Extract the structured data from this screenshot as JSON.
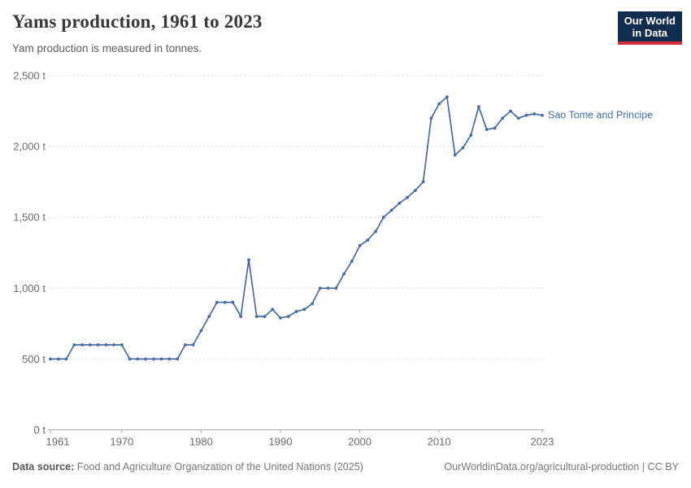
{
  "header": {
    "title": "Yams production, 1961 to 2023",
    "subtitle": "Yam production is measured in tonnes."
  },
  "logo": {
    "line1": "Our World",
    "line2": "in Data"
  },
  "footer": {
    "source_label": "Data source:",
    "source_text": " Food and Agriculture Organization of the United Nations (2025)",
    "right": "OurWorldinData.org/agricultural-production | CC BY"
  },
  "colors": {
    "accent": "#4a69a5",
    "title": "#383838",
    "axis_text": "#6e6e6e",
    "gridline": "#dedede",
    "axis_line": "#a8a8a8",
    "logo_bg": "#102d4f",
    "logo_red": "#d32f3f"
  },
  "chart_data": {
    "type": "line",
    "title": "Yams production, 1961 to 2023",
    "subtitle": "Yam production is measured in tonnes.",
    "xlabel": "",
    "ylabel": "",
    "unit": "t",
    "grid": "horizontal-dashed",
    "legend_position": "end-of-line-label",
    "xlim": [
      1961,
      2023
    ],
    "ylim": [
      0,
      2500
    ],
    "xticks": [
      1961,
      1970,
      1980,
      1990,
      2000,
      2010,
      2023
    ],
    "yticks": [
      {
        "value": 0,
        "label": "0 t"
      },
      {
        "value": 500,
        "label": "500 t"
      },
      {
        "value": 1000,
        "label": "1,000 t"
      },
      {
        "value": 1500,
        "label": "1,500 t"
      },
      {
        "value": 2000,
        "label": "2,000 t"
      },
      {
        "value": 2500,
        "label": "2,500 t"
      }
    ],
    "x": [
      1961,
      1962,
      1963,
      1964,
      1965,
      1966,
      1967,
      1968,
      1969,
      1970,
      1971,
      1972,
      1973,
      1974,
      1975,
      1976,
      1977,
      1978,
      1979,
      1980,
      1981,
      1982,
      1983,
      1984,
      1985,
      1986,
      1987,
      1988,
      1989,
      1990,
      1991,
      1992,
      1993,
      1994,
      1995,
      1996,
      1997,
      1998,
      1999,
      2000,
      2001,
      2002,
      2003,
      2004,
      2005,
      2006,
      2007,
      2008,
      2009,
      2010,
      2011,
      2012,
      2013,
      2014,
      2015,
      2016,
      2017,
      2018,
      2019,
      2020,
      2021,
      2022,
      2023
    ],
    "series": [
      {
        "name": "Sao Tome and Principe",
        "color": "#4a69a5",
        "values": [
          500,
          500,
          500,
          600,
          600,
          600,
          600,
          600,
          600,
          600,
          500,
          500,
          500,
          500,
          500,
          500,
          500,
          600,
          600,
          700,
          800,
          900,
          900,
          900,
          800,
          1200,
          800,
          800,
          850,
          790,
          800,
          835,
          850,
          890,
          1000,
          1000,
          1000,
          1100,
          1190,
          1300,
          1340,
          1400,
          1500,
          1550,
          1600,
          1640,
          1690,
          1750,
          2200,
          2300,
          2350,
          1940,
          1990,
          2080,
          2280,
          2120,
          2130,
          2200,
          2250,
          2200,
          2220,
          2230,
          2220
        ]
      }
    ]
  }
}
